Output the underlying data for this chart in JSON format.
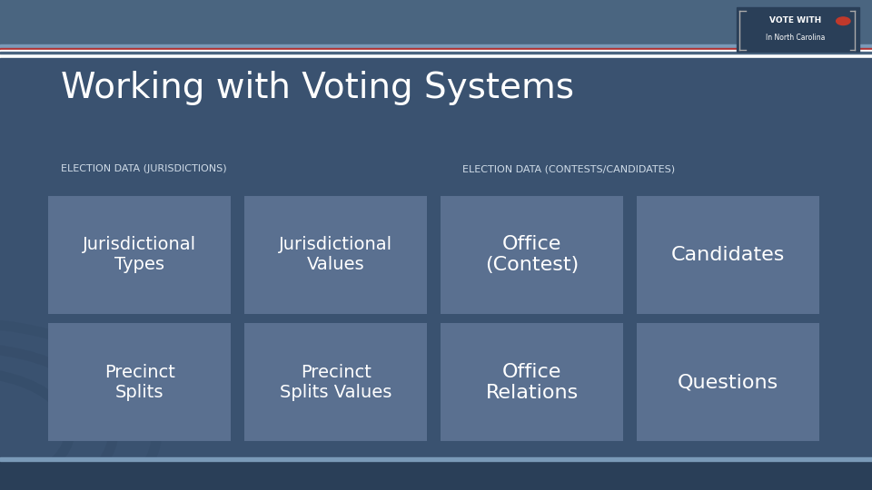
{
  "bg_color": "#3a5270",
  "header_stripe_colors": [
    "#5a7a9a",
    "#c0392b",
    "#ffffff",
    "#3a5270"
  ],
  "title": "Working with Voting Systems",
  "title_color": "#ffffff",
  "title_fontsize": 28,
  "label1": "ELECTION DATA (JURISDICTIONS)",
  "label2": "ELECTION DATA (CONTESTS/CANDIDATES)",
  "label_color": "#d0dce8",
  "label_fontsize": 8,
  "box_color_dark": "#5a7090",
  "box_color_light": "#7a90a8",
  "box_text_color": "#ffffff",
  "boxes": [
    {
      "row": 0,
      "col": 0,
      "text": "Jurisdictional\nTypes",
      "fontsize": 14
    },
    {
      "row": 0,
      "col": 1,
      "text": "Jurisdictional\nValues",
      "fontsize": 14
    },
    {
      "row": 0,
      "col": 2,
      "text": "Office\n(Contest)",
      "fontsize": 16
    },
    {
      "row": 0,
      "col": 3,
      "text": "Candidates",
      "fontsize": 16
    },
    {
      "row": 1,
      "col": 0,
      "text": "Precinct\nSplits",
      "fontsize": 14
    },
    {
      "row": 1,
      "col": 1,
      "text": "Precinct\nSplits Values",
      "fontsize": 14
    },
    {
      "row": 1,
      "col": 2,
      "text": "Office\nRelations",
      "fontsize": 16
    },
    {
      "row": 1,
      "col": 3,
      "text": "Questions",
      "fontsize": 16
    }
  ],
  "footer_color": "#2a3f58",
  "top_bar_height": 0.09,
  "bottom_bar_height": 0.06,
  "logo_bg": "#2a3f58",
  "logo_text": "VOTE WITH\nIn North Carolina",
  "circle_decor_color": "#2a3f58"
}
